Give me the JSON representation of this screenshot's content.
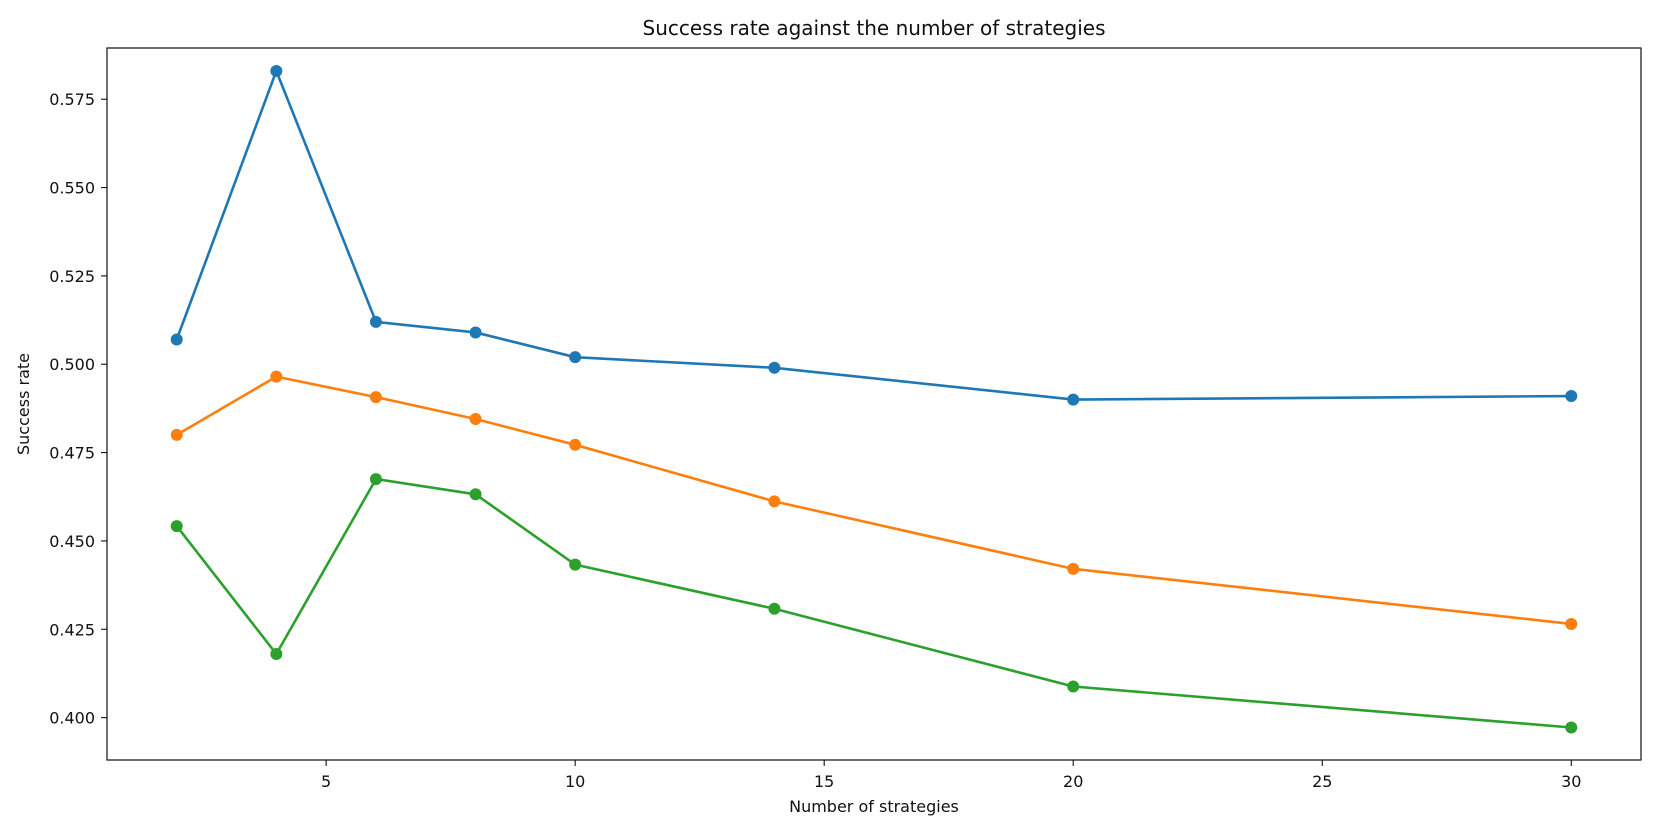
{
  "chart_data": {
    "type": "line",
    "title": "Success rate against the number of strategies",
    "xlabel": "Number of strategies",
    "ylabel": "Success rate",
    "x": [
      2,
      4,
      6,
      8,
      10,
      14,
      20,
      30
    ],
    "xlim": [
      0.6,
      31.4
    ],
    "ylim": [
      0.388,
      0.5895
    ],
    "x_ticks": [
      5,
      10,
      15,
      20,
      25,
      30
    ],
    "x_tick_labels": [
      "5",
      "10",
      "15",
      "20",
      "25",
      "30"
    ],
    "y_ticks": [
      0.4,
      0.425,
      0.45,
      0.475,
      0.5,
      0.525,
      0.55,
      0.575
    ],
    "y_tick_labels": [
      "0.400",
      "0.425",
      "0.450",
      "0.475",
      "0.500",
      "0.525",
      "0.550",
      "0.575"
    ],
    "grid": false,
    "markers": true,
    "series": [
      {
        "color": "#1f77b4",
        "values": [
          0.507,
          0.583,
          0.512,
          0.509,
          0.502,
          0.499,
          0.49,
          0.491
        ]
      },
      {
        "color": "#ff7f0e",
        "values": [
          0.48,
          0.4965,
          0.4907,
          0.4845,
          0.4772,
          0.4612,
          0.4421,
          0.4265
        ]
      },
      {
        "color": "#2ca02c",
        "values": [
          0.4542,
          0.418,
          0.4675,
          0.4632,
          0.4433,
          0.4308,
          0.4088,
          0.3972
        ]
      }
    ]
  }
}
